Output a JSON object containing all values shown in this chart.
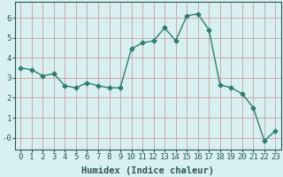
{
  "title": "",
  "xlabel": "Humidex (Indice chaleur)",
  "ylabel": "",
  "x": [
    0,
    1,
    2,
    3,
    4,
    5,
    6,
    7,
    8,
    9,
    10,
    11,
    12,
    13,
    14,
    15,
    16,
    17,
    18,
    19,
    20,
    21,
    22,
    23
  ],
  "y": [
    3.5,
    3.4,
    3.1,
    3.2,
    2.6,
    2.5,
    2.75,
    2.6,
    2.5,
    2.5,
    4.45,
    4.75,
    4.85,
    5.5,
    4.85,
    6.1,
    6.2,
    5.4,
    2.65,
    2.5,
    2.2,
    1.5,
    -0.15,
    0.35
  ],
  "line_color": "#2e7d6e",
  "marker": "D",
  "marker_size": 2.5,
  "bg_color": "#d8f0f0",
  "grid_major_color": "#c8a0a0",
  "grid_minor_color": "#c0d8d8",
  "axis_bg": "#d8f0f0",
  "ylim": [
    -0.6,
    6.8
  ],
  "xlim": [
    -0.5,
    23.5
  ],
  "yticks": [
    0,
    1,
    2,
    3,
    4,
    5,
    6
  ],
  "ytick_labels": [
    "-0",
    "1",
    "2",
    "3",
    "4",
    "5",
    "6"
  ],
  "xticks": [
    0,
    1,
    2,
    3,
    4,
    5,
    6,
    7,
    8,
    9,
    10,
    11,
    12,
    13,
    14,
    15,
    16,
    17,
    18,
    19,
    20,
    21,
    22,
    23
  ],
  "font_color": "#2e5555",
  "xlabel_fontsize": 7.5,
  "tick_fontsize": 6.5
}
